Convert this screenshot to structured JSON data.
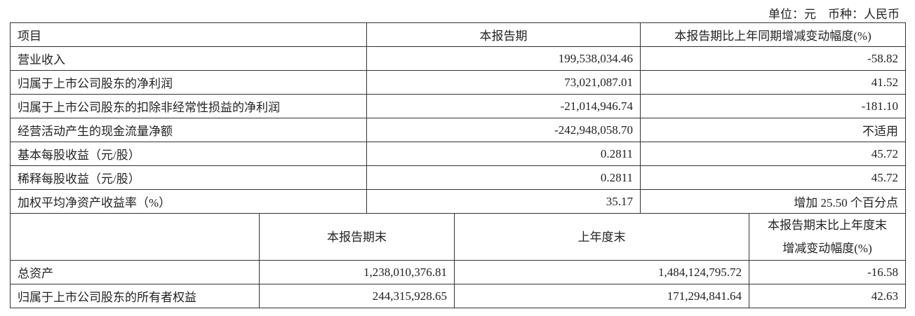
{
  "unit_note": "单位：元　币种：人民币",
  "top_table": {
    "headers": [
      "项目",
      "本报告期",
      "本报告期比上年同期增减变动幅度(%)"
    ],
    "rows": [
      [
        "营业收入",
        "199,538,034.46",
        "-58.82"
      ],
      [
        "归属于上市公司股东的净利润",
        "73,021,087.01",
        "41.52"
      ],
      [
        "归属于上市公司股东的扣除非经常性损益的净利润",
        "-21,014,946.74",
        "-181.10"
      ],
      [
        "经营活动产生的现金流量净额",
        "-242,948,058.70",
        "不适用"
      ],
      [
        "基本每股收益（元/股）",
        "0.2811",
        "45.72"
      ],
      [
        "稀释每股收益（元/股）",
        "0.2811",
        "45.72"
      ],
      [
        "加权平均净资产收益率（%）",
        "35.17",
        "增加 25.50 个百分点"
      ]
    ]
  },
  "bottom_table": {
    "headers": [
      "",
      "本报告期末",
      "上年度末",
      "本报告期末比上年度末",
      "增减变动幅度(%)"
    ],
    "rows": [
      [
        "总资产",
        "1,238,010,376.81",
        "1,484,124,795.72",
        "-16.58"
      ],
      [
        "归属于上市公司股东的所有者权益",
        "244,315,928.65",
        "171,294,841.64",
        "42.63"
      ]
    ]
  }
}
